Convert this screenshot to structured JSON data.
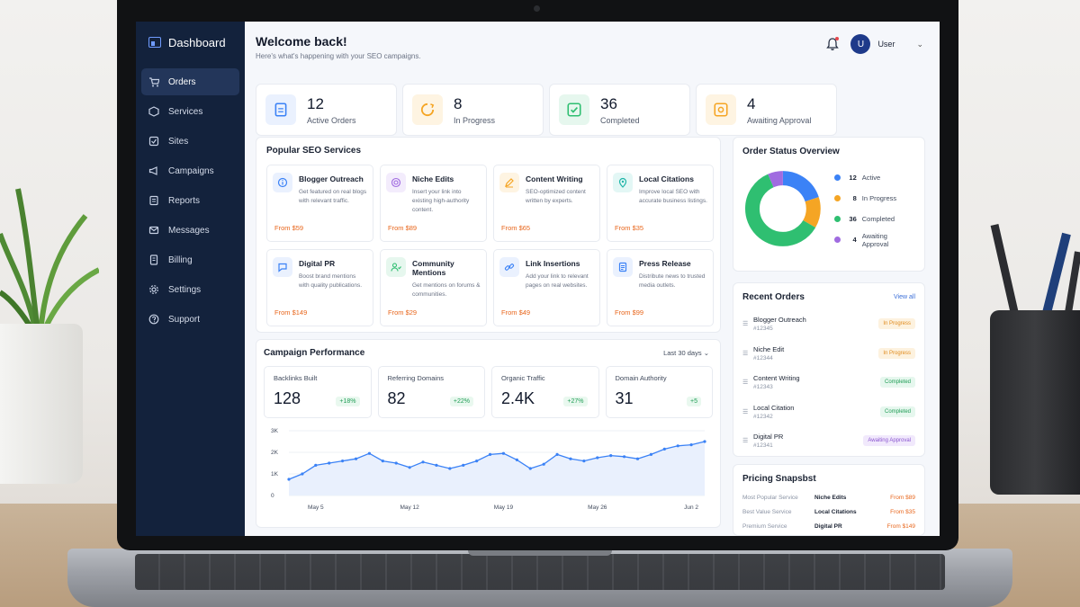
{
  "colors": {
    "sidebar_bg": "#13223c",
    "accent_blue": "#3b82f6",
    "accent_orange": "#f5a524",
    "accent_green": "#2fbf71",
    "accent_purple": "#a06be0",
    "price_orange": "#e8661c"
  },
  "sidebar": {
    "brand": "Dashboard",
    "brand_icon": "dashboard-icon",
    "items": [
      {
        "label": "Orders",
        "icon": "cart-icon",
        "active": true
      },
      {
        "label": "Services",
        "icon": "box-icon"
      },
      {
        "label": "Sites",
        "icon": "sites-icon"
      },
      {
        "label": "Campaigns",
        "icon": "megaphone-icon"
      },
      {
        "label": "Reports",
        "icon": "reports-icon"
      },
      {
        "label": "Messages",
        "icon": "mail-icon"
      },
      {
        "label": "Billing",
        "icon": "billing-icon"
      },
      {
        "label": "Settings",
        "icon": "gear-icon"
      },
      {
        "label": "Support",
        "icon": "help-icon"
      }
    ]
  },
  "header": {
    "title": "Welcome back!",
    "subtitle": "Here's what's happening with your SEO campaigns.",
    "avatar_initial": "U",
    "user_name": "User"
  },
  "stats": [
    {
      "value": "12",
      "label": "Active Orders",
      "icon": "clipboard-icon",
      "color": "#3b82f6",
      "bg": "#eaf1fe"
    },
    {
      "value": "8",
      "label": "In Progress",
      "icon": "progress-icon",
      "color": "#f5a524",
      "bg": "#fef4e2"
    },
    {
      "value": "36",
      "label": "Completed",
      "icon": "check-icon",
      "color": "#2fbf71",
      "bg": "#e6f7ee"
    },
    {
      "value": "4",
      "label": "Awaiting Approval",
      "icon": "approval-icon",
      "color": "#f5a524",
      "bg": "#fef4e2"
    }
  ],
  "services": {
    "title": "Popular SEO Services",
    "items": [
      {
        "name": "Blogger Outreach",
        "desc": "Get featured on real blogs with relevant traffic.",
        "price": "From $59",
        "icon": "info-icon",
        "color": "#3b82f6",
        "bg": "#eaf1fe"
      },
      {
        "name": "Niche Edits",
        "desc": "Insert your link into existing high-authority content.",
        "price": "From $89",
        "icon": "target-icon",
        "color": "#a06be0",
        "bg": "#f3ecfc"
      },
      {
        "name": "Content Writing",
        "desc": "SEO-optimized content written by experts.",
        "price": "From $65",
        "icon": "pencil-icon",
        "color": "#f5a524",
        "bg": "#fef4e2"
      },
      {
        "name": "Local Citations",
        "desc": "Improve local SEO with accurate business listings.",
        "price": "From $35",
        "icon": "pin-icon",
        "color": "#1fb5a8",
        "bg": "#e3f7f5"
      },
      {
        "name": "Digital PR",
        "desc": "Boost brand mentions with quality publications.",
        "price": "From $149",
        "icon": "chat-icon",
        "color": "#3b82f6",
        "bg": "#eaf1fe"
      },
      {
        "name": "Community Mentions",
        "desc": "Get mentions on forums & communities.",
        "price": "From $29",
        "icon": "people-icon",
        "color": "#2fbf71",
        "bg": "#e6f7ee"
      },
      {
        "name": "Link Insertions",
        "desc": "Add your link to relevant pages on real websites.",
        "price": "From $49",
        "icon": "link-icon",
        "color": "#3b82f6",
        "bg": "#eaf1fe"
      },
      {
        "name": "Press Release",
        "desc": "Distribute news to trusted media outlets.",
        "price": "From $99",
        "icon": "document-icon",
        "color": "#3b82f6",
        "bg": "#eaf1fe"
      }
    ]
  },
  "campaign": {
    "title": "Campaign Performance",
    "range": "Last 30 days",
    "kpis": [
      {
        "label": "Backlinks Built",
        "value": "128",
        "delta": "+18%"
      },
      {
        "label": "Referring Domains",
        "value": "82",
        "delta": "+22%"
      },
      {
        "label": "Organic Traffic",
        "value": "2.4K",
        "delta": "+27%"
      },
      {
        "label": "Domain Authority",
        "value": "31",
        "delta": "+5"
      }
    ]
  },
  "chart_data": {
    "type": "line",
    "title": "",
    "xlabel": "",
    "ylabel": "",
    "ylim": [
      0,
      3000
    ],
    "ytick_labels": [
      "0",
      "1K",
      "2K",
      "3K"
    ],
    "ytick_values": [
      0,
      1000,
      2000,
      3000
    ],
    "xtick_labels": [
      "May 5",
      "May 12",
      "May 19",
      "May 26",
      "Jun 2"
    ],
    "xtick_index": [
      2,
      9,
      16,
      23,
      30
    ],
    "x": [
      "May 3",
      "May 4",
      "May 5",
      "May 6",
      "May 7",
      "May 8",
      "May 9",
      "May 10",
      "May 11",
      "May 12",
      "May 13",
      "May 14",
      "May 15",
      "May 16",
      "May 17",
      "May 18",
      "May 19",
      "May 20",
      "May 21",
      "May 22",
      "May 23",
      "May 24",
      "May 25",
      "May 26",
      "May 27",
      "May 28",
      "May 29",
      "May 30",
      "May 31",
      "Jun 1",
      "Jun 2",
      "Jun 3"
    ],
    "series": [
      {
        "values": [
          750,
          1000,
          1400,
          1500,
          1600,
          1700,
          1950,
          1600,
          1500,
          1300,
          1550,
          1400,
          1250,
          1400,
          1600,
          1900,
          1950,
          1650,
          1250,
          1450,
          1900,
          1700,
          1600,
          1750,
          1850,
          1800,
          1700,
          1900,
          2150,
          2300,
          2350,
          2500
        ]
      }
    ],
    "grid": true
  },
  "order_status": {
    "title": "Order Status Overview",
    "segments": [
      {
        "label": "Active",
        "value": 12,
        "color": "#3b82f6"
      },
      {
        "label": "In Progress",
        "value": 8,
        "color": "#f5a524"
      },
      {
        "label": "Completed",
        "value": 36,
        "color": "#2fbf71"
      },
      {
        "label": "Awaiting Approval",
        "value": 4,
        "color": "#a06be0"
      }
    ]
  },
  "recent_orders": {
    "title": "Recent Orders",
    "view_all": "View all",
    "items": [
      {
        "name": "Blogger Outreach",
        "id": "#12345",
        "status": "In Progress",
        "status_color": "#e08a1b",
        "status_bg": "#fdf2df"
      },
      {
        "name": "Niche Edit",
        "id": "#12344",
        "status": "In Progress",
        "status_color": "#e08a1b",
        "status_bg": "#fdf2df"
      },
      {
        "name": "Content Writing",
        "id": "#12343",
        "status": "Completed",
        "status_color": "#1f9d55",
        "status_bg": "#e6f7ee"
      },
      {
        "name": "Local Citation",
        "id": "#12342",
        "status": "Completed",
        "status_color": "#1f9d55",
        "status_bg": "#e6f7ee"
      },
      {
        "name": "Digital PR",
        "id": "#12341",
        "status": "Awaiting Approval",
        "status_color": "#8a55d0",
        "status_bg": "#f1e9fc"
      }
    ]
  },
  "pricing": {
    "title": "Pricing Snapsbst",
    "rows": [
      {
        "label": "Most Popular Service",
        "service": "Niche Edits",
        "price": "From $89"
      },
      {
        "label": "Best Value Service",
        "service": "Local Citations",
        "price": "From $35"
      },
      {
        "label": "Premium Service",
        "service": "Digital PR",
        "price": "From $149"
      }
    ]
  }
}
